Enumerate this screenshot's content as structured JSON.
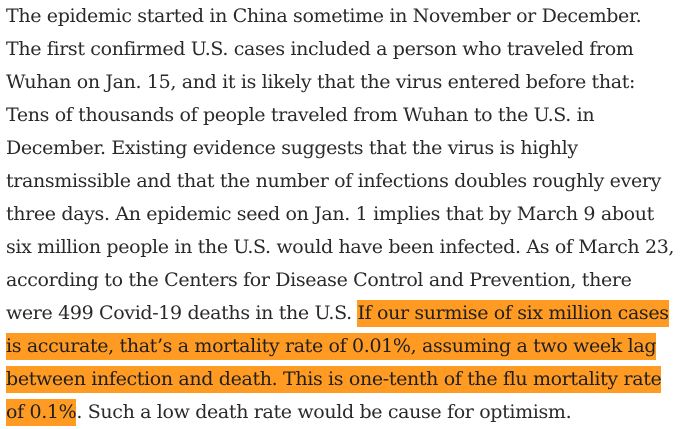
{
  "article": {
    "lines": [
      [
        {
          "text": "The epidemic started in China sometime in November or December.",
          "hl": false
        }
      ],
      [
        {
          "text": "The first confirmed U.S. cases included a person who traveled from",
          "hl": false
        }
      ],
      [
        {
          "text": "Wuhan on Jan. 15, and it is likely that the virus entered before that:",
          "hl": false
        }
      ],
      [
        {
          "text": "Tens of thousands of people traveled from Wuhan to the U.S. in",
          "hl": false
        }
      ],
      [
        {
          "text": "December. Existing evidence suggests that the virus is highly",
          "hl": false
        }
      ],
      [
        {
          "text": "transmissible and that the number of infections doubles roughly every",
          "hl": false
        }
      ],
      [
        {
          "text": "three days. An epidemic seed on Jan. 1 implies that by March 9 about",
          "hl": false
        }
      ],
      [
        {
          "text": "six million people in the U.S. would have been infected. As of March 23,",
          "hl": false
        }
      ],
      [
        {
          "text": "according to the Centers for Disease Control and Prevention, there",
          "hl": false
        }
      ],
      [
        {
          "text": "were 499 Covid-19 deaths in the U.S. ",
          "hl": false
        },
        {
          "text": "If our surmise of six million cases",
          "hl": true
        }
      ],
      [
        {
          "text": "is accurate, that’s a mortality rate of 0.01%, assuming a two week lag",
          "hl": true
        }
      ],
      [
        {
          "text": "between infection and death. This is one-tenth of the flu mortality rate",
          "hl": true
        }
      ],
      [
        {
          "text": "of 0.1%",
          "hl": true
        },
        {
          "text": ". Such a low death rate would be cause for optimism.",
          "hl": false
        }
      ]
    ],
    "highlight_color": "#ff9b22",
    "text_color": "#292929"
  }
}
